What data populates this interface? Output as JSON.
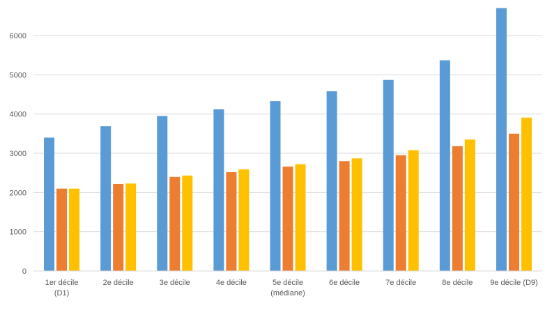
{
  "chart_data": {
    "type": "bar",
    "categories": [
      [
        "1er décile",
        "(D1)"
      ],
      [
        "2e décile"
      ],
      [
        "3e décile"
      ],
      [
        "4e décile"
      ],
      [
        "5e décile",
        "(médiane)"
      ],
      [
        "6e décile"
      ],
      [
        "7e décile"
      ],
      [
        "8e décile"
      ],
      [
        "9e décile (D9)"
      ]
    ],
    "series": [
      {
        "color": "#5b9bd5",
        "values": [
          3400,
          3690,
          3950,
          4120,
          4330,
          4580,
          4870,
          5370,
          6700
        ]
      },
      {
        "color": "#ed7d31",
        "values": [
          2100,
          2220,
          2400,
          2520,
          2660,
          2800,
          2950,
          3180,
          3500
        ]
      },
      {
        "color": "#ffc000",
        "values": [
          2100,
          2230,
          2430,
          2590,
          2720,
          2870,
          3080,
          3350,
          3910
        ]
      }
    ],
    "ylim": [
      0,
      6800
    ],
    "yticks": [
      0,
      1000,
      2000,
      3000,
      4000,
      5000,
      6000
    ],
    "grid": true,
    "legend": "none",
    "title": "",
    "xlabel": "",
    "ylabel": ""
  }
}
